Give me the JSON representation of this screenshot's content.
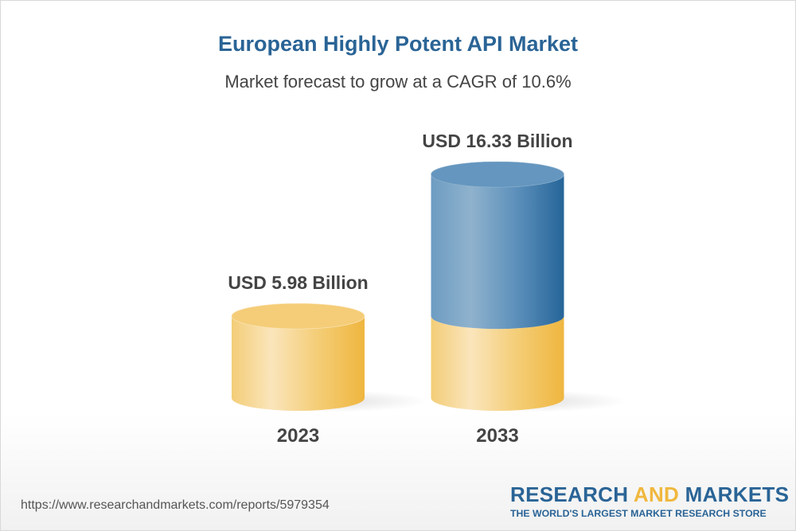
{
  "title": "European Highly Potent API Market",
  "subtitle": "Market forecast to grow at a CAGR of 10.6%",
  "chart_data": {
    "type": "bar",
    "style": "3d-cylinder",
    "categories": [
      "2023",
      "2033"
    ],
    "values": [
      5.98,
      16.33
    ],
    "data_labels": [
      "USD 5.98 Billion",
      "USD 16.33 Billion"
    ],
    "unit": "USD Billion",
    "colors": {
      "base": "#f2c15a",
      "growth": "#2f6da0"
    }
  },
  "footer": {
    "url": "https://www.researchandmarkets.com/reports/5979354",
    "logo_part1": "RESEARCH ",
    "logo_part2": "AND",
    "logo_part3": " MARKETS",
    "tagline": "THE WORLD'S LARGEST MARKET RESEARCH STORE"
  }
}
